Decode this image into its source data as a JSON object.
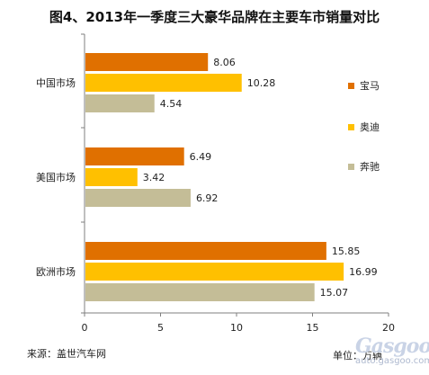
{
  "chart_data": {
    "type": "bar",
    "orientation": "horizontal",
    "title": "图4、2013年一季度三大豪华品牌在主要车市销量对比",
    "categories": [
      "中国市场",
      "美国市场",
      "欧洲市场"
    ],
    "series": [
      {
        "name": "宝马",
        "values": [
          8.06,
          6.49,
          15.85
        ],
        "color": "#e07000"
      },
      {
        "name": "奥迪",
        "values": [
          10.28,
          3.42,
          16.99
        ],
        "color": "#ffc000"
      },
      {
        "name": "奔驰",
        "values": [
          4.54,
          6.92,
          15.07
        ],
        "color": "#c4bd97"
      }
    ],
    "xlim": [
      0,
      20
    ],
    "xticks": [
      "0",
      "5",
      "10",
      "15",
      "20"
    ],
    "legend_position": "right",
    "grid": false
  },
  "source": "来源：盖世汽车网",
  "unit": "单位：万辆",
  "watermark": {
    "brand": "Gasgoo",
    "site": "auto.gasgoo.com"
  }
}
